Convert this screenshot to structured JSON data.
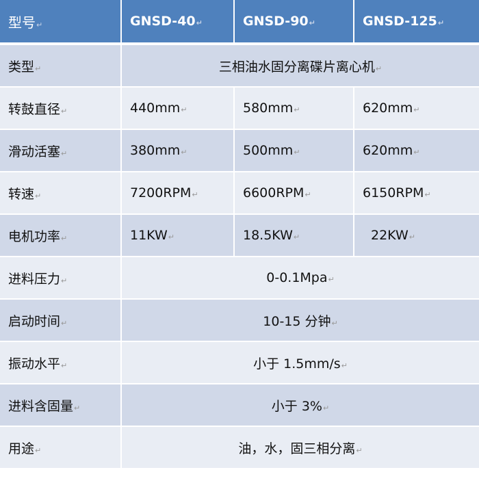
{
  "mark": "↵",
  "header": {
    "label": "型号",
    "models": [
      "GNSD-40",
      "GNSD-90",
      "GNSD-125"
    ]
  },
  "rows": [
    {
      "label": "类型",
      "span": "三相油水固分离碟片离心机"
    },
    {
      "label": "转鼓直径",
      "values": [
        "440mm",
        "580mm",
        "620mm"
      ]
    },
    {
      "label": "滑动活塞",
      "values": [
        "380mm",
        "500mm",
        "620mm"
      ]
    },
    {
      "label": "转速",
      "values": [
        "7200RPM",
        "6600RPM",
        "6150RPM"
      ]
    },
    {
      "label": "电机功率",
      "values": [
        "11KW",
        "18.5KW",
        "22KW"
      ]
    },
    {
      "label": "进料压力",
      "span": "0-0.1Mpa"
    },
    {
      "label": "启动时间",
      "span": "10-15 分钟"
    },
    {
      "label": "振动水平",
      "span": "小于 1.5mm/s"
    },
    {
      "label": "进料含固量",
      "span": "小于 3%"
    },
    {
      "label": "用途",
      "span": "油，水，固三相分离"
    }
  ],
  "colors": {
    "header": "#4f81bd",
    "row_dark": "#d0d8e8",
    "row_light": "#e9edf4"
  }
}
